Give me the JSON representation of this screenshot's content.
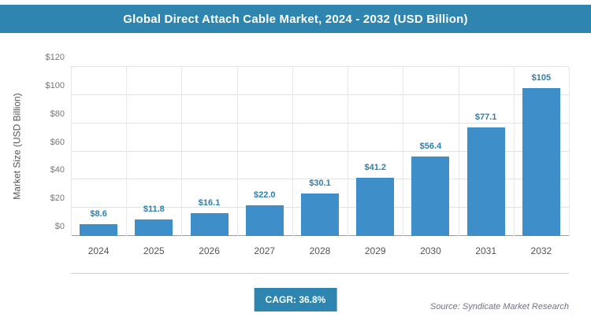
{
  "title": "Global Direct Attach Cable Market, 2024 - 2032 (USD Billion)",
  "cagr_label": "CAGR: 36.8%",
  "source": "Source: Syndicate Market Research",
  "colors": {
    "header": "#2e86b0",
    "bar": "#3d8ec9",
    "value_label": "#2e7fae",
    "badge": "#2e86b0"
  },
  "chart_data": {
    "type": "bar",
    "title": "Global Direct Attach Cable Market, 2024 - 2032 (USD Billion)",
    "xlabel": "",
    "ylabel": "Market Size (USD Billion)",
    "ylim": [
      0,
      120
    ],
    "grid": true,
    "categories": [
      "2024",
      "2025",
      "2026",
      "2027",
      "2028",
      "2029",
      "2030",
      "2031",
      "2032"
    ],
    "values": [
      8.6,
      11.8,
      16.1,
      22.0,
      30.1,
      41.2,
      56.4,
      77.1,
      105
    ],
    "value_labels": [
      "$8.6",
      "$11.8",
      "$16.1",
      "$22.0",
      "$30.1",
      "$41.2",
      "$56.4",
      "$77.1",
      "$105"
    ],
    "yticks": [
      {
        "value": 0,
        "label": "$0"
      },
      {
        "value": 20,
        "label": "$20"
      },
      {
        "value": 40,
        "label": "$40"
      },
      {
        "value": 60,
        "label": "$60"
      },
      {
        "value": 80,
        "label": "$80"
      },
      {
        "value": 100,
        "label": "$100"
      },
      {
        "value": 120,
        "label": "$120"
      }
    ]
  }
}
